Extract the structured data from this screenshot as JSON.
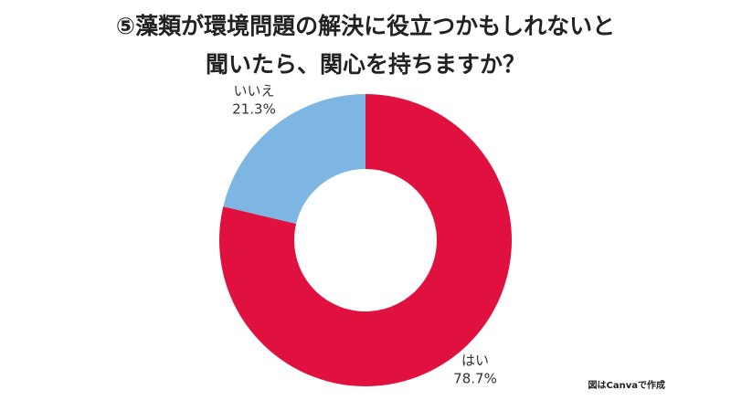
{
  "chart_data": {
    "type": "donut",
    "title": [
      "⑤藻類が環境問題の解決に役立つかもしれないと",
      "聞いたら、関心を持ちますか？"
    ],
    "categories": [
      "はい",
      "いいえ"
    ],
    "values": [
      78.7,
      21.3
    ],
    "value_labels": [
      "78.7%",
      "21.3%"
    ],
    "colors": [
      "#e0103f",
      "#7db6e2"
    ],
    "note": "図はCanvaで作成"
  }
}
